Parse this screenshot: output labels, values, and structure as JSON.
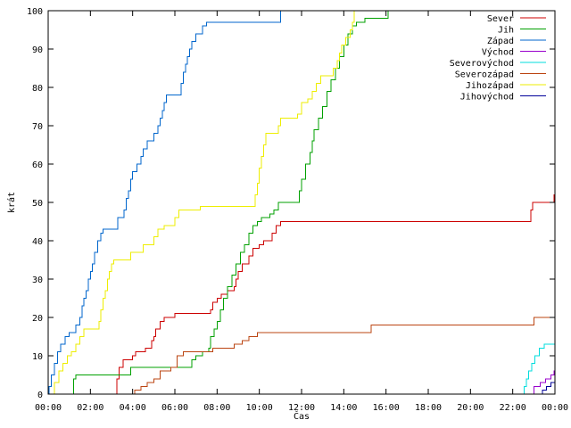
{
  "chart_data": {
    "type": "line",
    "xlabel": "Čas",
    "ylabel": "krát",
    "xlim": [
      0,
      24
    ],
    "ylim": [
      0,
      100
    ],
    "x_ticks": [
      {
        "value": 0,
        "label": "00:00"
      },
      {
        "value": 2,
        "label": "02:00"
      },
      {
        "value": 4,
        "label": "04:00"
      },
      {
        "value": 6,
        "label": "06:00"
      },
      {
        "value": 8,
        "label": "08:00"
      },
      {
        "value": 10,
        "label": "10:00"
      },
      {
        "value": 12,
        "label": "12:00"
      },
      {
        "value": 14,
        "label": "14:00"
      },
      {
        "value": 16,
        "label": "16:00"
      },
      {
        "value": 18,
        "label": "18:00"
      },
      {
        "value": 20,
        "label": "20:00"
      },
      {
        "value": 22,
        "label": "22:00"
      },
      {
        "value": 24,
        "label": "00:00"
      }
    ],
    "y_ticks": [
      {
        "value": 0,
        "label": "0"
      },
      {
        "value": 10,
        "label": "10"
      },
      {
        "value": 20,
        "label": "20"
      },
      {
        "value": 30,
        "label": "30"
      },
      {
        "value": 40,
        "label": "40"
      },
      {
        "value": 50,
        "label": "50"
      },
      {
        "value": 60,
        "label": "60"
      },
      {
        "value": 70,
        "label": "70"
      },
      {
        "value": 80,
        "label": "80"
      },
      {
        "value": 90,
        "label": "90"
      },
      {
        "value": 100,
        "label": "100"
      }
    ],
    "grid": false,
    "legend_position": "top-right",
    "line_style": "step",
    "series": [
      {
        "name": "Sever",
        "color": "#cc0000",
        "points": [
          [
            0,
            0
          ],
          [
            3.15,
            0
          ],
          [
            3.25,
            4
          ],
          [
            3.35,
            7
          ],
          [
            3.55,
            9
          ],
          [
            4.0,
            10
          ],
          [
            4.15,
            11
          ],
          [
            4.6,
            12
          ],
          [
            4.9,
            14
          ],
          [
            5.0,
            15
          ],
          [
            5.1,
            17
          ],
          [
            5.3,
            19
          ],
          [
            5.5,
            20
          ],
          [
            5.8,
            20
          ],
          [
            6.0,
            21
          ],
          [
            7.5,
            21
          ],
          [
            7.7,
            22
          ],
          [
            7.8,
            24
          ],
          [
            8.0,
            25
          ],
          [
            8.2,
            26
          ],
          [
            8.5,
            27
          ],
          [
            8.8,
            28
          ],
          [
            8.9,
            30
          ],
          [
            9.0,
            32
          ],
          [
            9.2,
            34
          ],
          [
            9.5,
            36
          ],
          [
            9.7,
            38
          ],
          [
            10.0,
            39
          ],
          [
            10.2,
            40
          ],
          [
            10.6,
            42
          ],
          [
            10.8,
            44
          ],
          [
            11.0,
            45
          ],
          [
            22.8,
            45
          ],
          [
            22.85,
            48
          ],
          [
            22.95,
            50
          ],
          [
            23.9,
            50
          ],
          [
            23.95,
            52
          ],
          [
            24.0,
            54
          ]
        ]
      },
      {
        "name": "Jih",
        "color": "#00a000",
        "points": [
          [
            0,
            0
          ],
          [
            1.05,
            0
          ],
          [
            1.2,
            4
          ],
          [
            1.3,
            5
          ],
          [
            3.8,
            5
          ],
          [
            3.9,
            7
          ],
          [
            6.5,
            7
          ],
          [
            6.8,
            9
          ],
          [
            7.0,
            10
          ],
          [
            7.3,
            11
          ],
          [
            7.6,
            12
          ],
          [
            7.7,
            15
          ],
          [
            7.85,
            17
          ],
          [
            8.0,
            19
          ],
          [
            8.15,
            22
          ],
          [
            8.3,
            25
          ],
          [
            8.5,
            28
          ],
          [
            8.7,
            31
          ],
          [
            8.9,
            34
          ],
          [
            9.1,
            37
          ],
          [
            9.3,
            39
          ],
          [
            9.5,
            42
          ],
          [
            9.7,
            44
          ],
          [
            9.9,
            45
          ],
          [
            10.1,
            46
          ],
          [
            10.5,
            47
          ],
          [
            10.7,
            48
          ],
          [
            10.9,
            50
          ],
          [
            11.8,
            50
          ],
          [
            11.9,
            53
          ],
          [
            12.0,
            56
          ],
          [
            12.2,
            60
          ],
          [
            12.4,
            63
          ],
          [
            12.5,
            66
          ],
          [
            12.6,
            69
          ],
          [
            12.8,
            72
          ],
          [
            13.0,
            75
          ],
          [
            13.2,
            79
          ],
          [
            13.4,
            82
          ],
          [
            13.6,
            85
          ],
          [
            13.8,
            88
          ],
          [
            14.0,
            91
          ],
          [
            14.2,
            94
          ],
          [
            14.4,
            96
          ],
          [
            14.6,
            97
          ],
          [
            15.0,
            98
          ],
          [
            16.0,
            98
          ],
          [
            16.1,
            100
          ]
        ]
      },
      {
        "name": "Západ",
        "color": "#0066cc",
        "points": [
          [
            0,
            0
          ],
          [
            0.05,
            2
          ],
          [
            0.15,
            5
          ],
          [
            0.3,
            8
          ],
          [
            0.45,
            11
          ],
          [
            0.6,
            13
          ],
          [
            0.8,
            15
          ],
          [
            1.0,
            16
          ],
          [
            1.3,
            18
          ],
          [
            1.5,
            20
          ],
          [
            1.6,
            23
          ],
          [
            1.7,
            25
          ],
          [
            1.8,
            27
          ],
          [
            1.9,
            30
          ],
          [
            2.0,
            32
          ],
          [
            2.1,
            34
          ],
          [
            2.2,
            37
          ],
          [
            2.35,
            40
          ],
          [
            2.5,
            42
          ],
          [
            2.6,
            43
          ],
          [
            3.2,
            43
          ],
          [
            3.3,
            46
          ],
          [
            3.6,
            48
          ],
          [
            3.7,
            51
          ],
          [
            3.8,
            53
          ],
          [
            3.9,
            56
          ],
          [
            4.0,
            58
          ],
          [
            4.2,
            60
          ],
          [
            4.4,
            62
          ],
          [
            4.5,
            64
          ],
          [
            4.7,
            66
          ],
          [
            5.0,
            68
          ],
          [
            5.2,
            70
          ],
          [
            5.3,
            72
          ],
          [
            5.4,
            74
          ],
          [
            5.5,
            76
          ],
          [
            5.6,
            78
          ],
          [
            6.2,
            78
          ],
          [
            6.3,
            81
          ],
          [
            6.4,
            84
          ],
          [
            6.5,
            86
          ],
          [
            6.6,
            88
          ],
          [
            6.7,
            90
          ],
          [
            6.8,
            92
          ],
          [
            7.0,
            94
          ],
          [
            7.3,
            96
          ],
          [
            7.5,
            97
          ],
          [
            10.8,
            97
          ],
          [
            11.0,
            100
          ]
        ]
      },
      {
        "name": "Východ",
        "color": "#9900cc",
        "points": [
          [
            0,
            0
          ],
          [
            22.9,
            0
          ],
          [
            23.0,
            2
          ],
          [
            23.3,
            3
          ],
          [
            23.55,
            4
          ],
          [
            23.8,
            5
          ],
          [
            23.95,
            6
          ],
          [
            24.0,
            6
          ]
        ]
      },
      {
        "name": "Severovýchod",
        "color": "#00dddd",
        "points": [
          [
            0,
            0
          ],
          [
            22.45,
            0
          ],
          [
            22.55,
            2
          ],
          [
            22.65,
            4
          ],
          [
            22.75,
            6
          ],
          [
            22.9,
            8
          ],
          [
            23.05,
            10
          ],
          [
            23.25,
            12
          ],
          [
            23.5,
            13
          ],
          [
            24.0,
            13
          ]
        ]
      },
      {
        "name": "Severozápad",
        "color": "#bb4411",
        "points": [
          [
            0,
            0
          ],
          [
            3.9,
            0
          ],
          [
            4.1,
            1
          ],
          [
            4.4,
            2
          ],
          [
            4.7,
            3
          ],
          [
            5.0,
            4
          ],
          [
            5.3,
            6
          ],
          [
            5.8,
            7
          ],
          [
            6.1,
            10
          ],
          [
            6.4,
            11
          ],
          [
            7.6,
            11
          ],
          [
            7.8,
            12
          ],
          [
            8.6,
            12
          ],
          [
            8.8,
            13
          ],
          [
            9.2,
            14
          ],
          [
            9.5,
            15
          ],
          [
            9.9,
            16
          ],
          [
            15.2,
            16
          ],
          [
            15.3,
            18
          ],
          [
            22.9,
            18
          ],
          [
            23.0,
            20
          ],
          [
            24.0,
            20
          ]
        ]
      },
      {
        "name": "Jihozápad",
        "color": "#eeee00",
        "points": [
          [
            0,
            0
          ],
          [
            0.3,
            3
          ],
          [
            0.5,
            6
          ],
          [
            0.7,
            8
          ],
          [
            0.9,
            10
          ],
          [
            1.1,
            11
          ],
          [
            1.3,
            13
          ],
          [
            1.5,
            15
          ],
          [
            1.7,
            17
          ],
          [
            2.4,
            19
          ],
          [
            2.5,
            22
          ],
          [
            2.6,
            25
          ],
          [
            2.7,
            27
          ],
          [
            2.8,
            30
          ],
          [
            2.9,
            32
          ],
          [
            3.0,
            34
          ],
          [
            3.1,
            35
          ],
          [
            3.8,
            35
          ],
          [
            3.9,
            37
          ],
          [
            4.3,
            37
          ],
          [
            4.5,
            39
          ],
          [
            5.0,
            41
          ],
          [
            5.2,
            43
          ],
          [
            5.5,
            44
          ],
          [
            6.0,
            46
          ],
          [
            6.2,
            48
          ],
          [
            7.0,
            48
          ],
          [
            7.2,
            49
          ],
          [
            9.7,
            49
          ],
          [
            9.8,
            52
          ],
          [
            9.9,
            55
          ],
          [
            10.0,
            59
          ],
          [
            10.1,
            62
          ],
          [
            10.2,
            65
          ],
          [
            10.3,
            68
          ],
          [
            10.8,
            68
          ],
          [
            10.9,
            70
          ],
          [
            11.0,
            72
          ],
          [
            11.6,
            72
          ],
          [
            11.8,
            73
          ],
          [
            12.0,
            76
          ],
          [
            12.3,
            77
          ],
          [
            12.5,
            79
          ],
          [
            12.7,
            81
          ],
          [
            12.9,
            83
          ],
          [
            13.3,
            83
          ],
          [
            13.5,
            85
          ],
          [
            13.7,
            87
          ],
          [
            13.8,
            89
          ],
          [
            13.9,
            91
          ],
          [
            14.1,
            93
          ],
          [
            14.3,
            95
          ],
          [
            14.4,
            97
          ],
          [
            14.5,
            100
          ]
        ]
      },
      {
        "name": "Jihovýchod",
        "color": "#000099",
        "points": [
          [
            0,
            0
          ],
          [
            23.3,
            0
          ],
          [
            23.4,
            1
          ],
          [
            23.6,
            2
          ],
          [
            23.8,
            3
          ],
          [
            24.0,
            3
          ]
        ]
      }
    ]
  }
}
